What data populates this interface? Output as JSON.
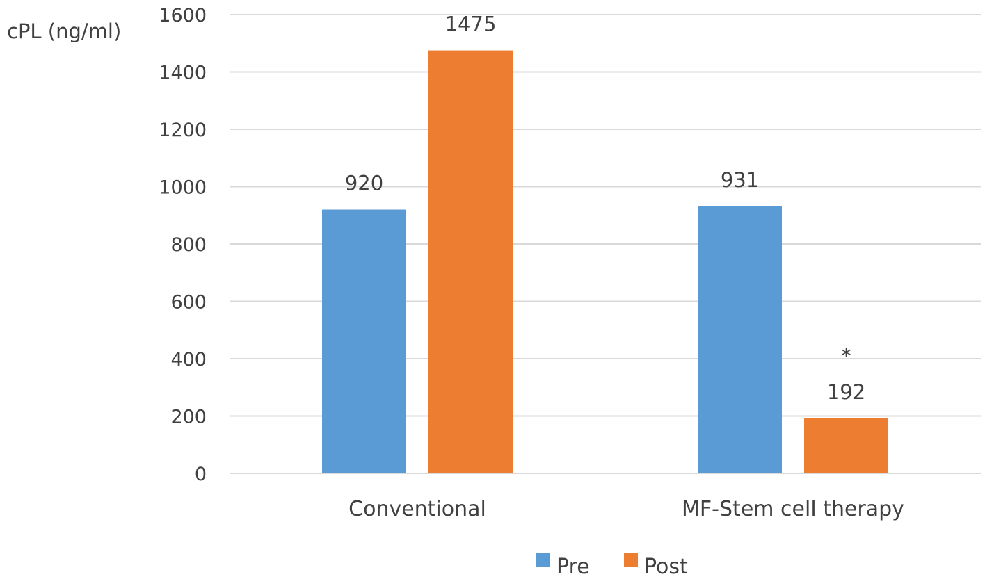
{
  "chart_data": {
    "type": "bar",
    "title": "",
    "xlabel": "",
    "ylabel": "cPL (ng/ml)",
    "ylim": [
      0,
      1600
    ],
    "yticks": [
      0,
      200,
      400,
      600,
      800,
      1000,
      1200,
      1400,
      1600
    ],
    "grid": true,
    "legend_position": "bottom",
    "categories": [
      "Conventional",
      "MF-Stem cell therapy"
    ],
    "series": [
      {
        "name": "Pre",
        "color": "#5b9bd5",
        "values": [
          920,
          931
        ]
      },
      {
        "name": "Post",
        "color": "#ed7d31",
        "values": [
          1475,
          192
        ]
      }
    ],
    "annotations": [
      {
        "category": "MF-Stem cell therapy",
        "series": "Post",
        "text": "*"
      }
    ]
  }
}
